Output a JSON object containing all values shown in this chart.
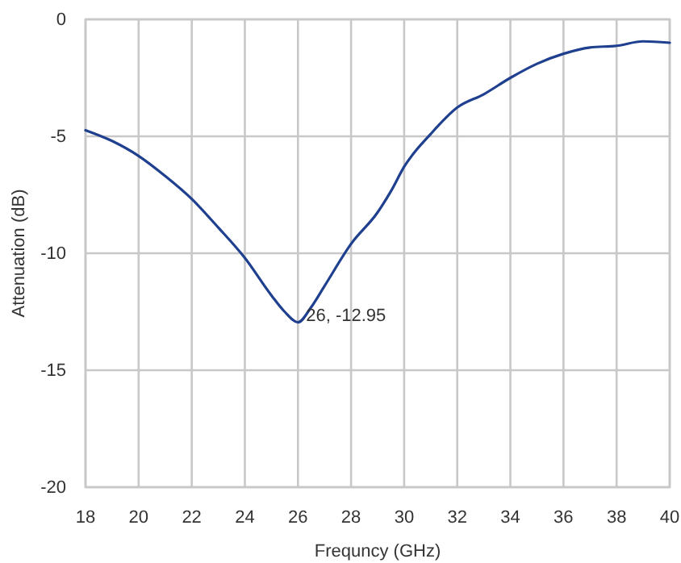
{
  "chart_data": {
    "type": "line",
    "xlabel": "Frequncy  (GHz)",
    "ylabel": "Attenuation  (dB)",
    "x": [
      18,
      19,
      20,
      21,
      22,
      23,
      24,
      25,
      25.5,
      26,
      26.5,
      27,
      28,
      29,
      29.5,
      30,
      31,
      32,
      33,
      34,
      35,
      36,
      37,
      38,
      39,
      40
    ],
    "series": [
      {
        "color": "#1f3f8f",
        "values": [
          -4.74,
          -5.2,
          -5.84,
          -6.7,
          -7.68,
          -8.9,
          -10.2,
          -11.8,
          -12.5,
          -12.95,
          -12.3,
          -11.4,
          -9.6,
          -8.25,
          -7.35,
          -6.3,
          -4.9,
          -3.77,
          -3.2,
          -2.5,
          -1.9,
          -1.47,
          -1.2,
          -1.13,
          -0.94,
          -1.0
        ]
      }
    ],
    "xlim": [
      18,
      40
    ],
    "xticks": [
      18,
      20,
      22,
      24,
      26,
      28,
      30,
      32,
      34,
      36,
      38,
      40
    ],
    "ylim": [
      -20,
      0
    ],
    "yticks": [
      -20,
      -15,
      -10,
      -5,
      0
    ],
    "grid": true,
    "annotations": [
      {
        "text": "26, -12.95",
        "x": 26,
        "y": -12.95
      }
    ]
  }
}
